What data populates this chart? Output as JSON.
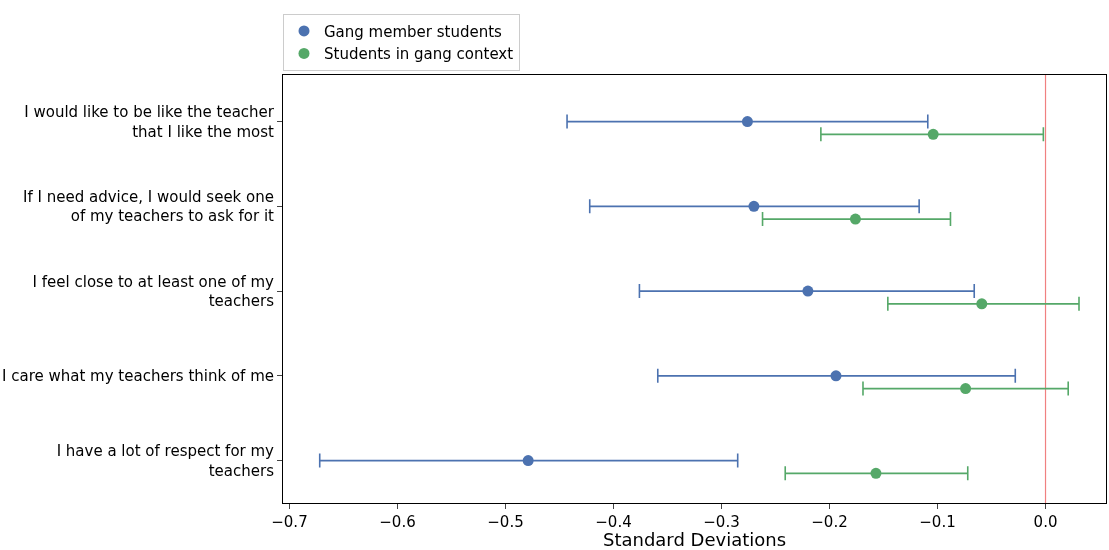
{
  "chart_data": {
    "type": "scatter",
    "orientation": "horizontal",
    "xlabel": "Standard Deviations",
    "categories": [
      "I would like to be like the teacher\n that I like the most",
      "If I need advice, I would seek one\n of my teachers to ask for it",
      "I feel close to at least one of my\n teachers",
      "I care what my teachers think of me",
      "I have a lot of respect for my\n teachers"
    ],
    "series": [
      {
        "name": "Gang member students",
        "color": "#4c72b0",
        "values": [
          -0.276,
          -0.27,
          -0.22,
          -0.194,
          -0.479
        ],
        "errors": [
          [
            -0.443,
            -0.109
          ],
          [
            -0.422,
            -0.117
          ],
          [
            -0.376,
            -0.066
          ],
          [
            -0.359,
            -0.028
          ],
          [
            -0.672,
            -0.285
          ]
        ]
      },
      {
        "name": "Students in gang context",
        "color": "#55a868",
        "values": [
          -0.104,
          -0.176,
          -0.059,
          -0.074,
          -0.157
        ],
        "errors": [
          [
            -0.208,
            -0.002
          ],
          [
            -0.262,
            -0.088
          ],
          [
            -0.146,
            0.031
          ],
          [
            -0.169,
            0.021
          ],
          [
            -0.241,
            -0.072
          ]
        ]
      }
    ],
    "xlim": [
      -0.706,
      0.056
    ],
    "xticks": [
      {
        "value": -0.7,
        "label": "−0.7"
      },
      {
        "value": -0.6,
        "label": "−0.6"
      },
      {
        "value": -0.5,
        "label": "−0.5"
      },
      {
        "value": -0.4,
        "label": "−0.4"
      },
      {
        "value": -0.3,
        "label": "−0.3"
      },
      {
        "value": -0.2,
        "label": "−0.2"
      },
      {
        "value": -0.1,
        "label": "−0.1"
      },
      {
        "value": 0,
        "label": "0.0"
      }
    ],
    "ref_lines": [
      {
        "axis": "x",
        "value": 0,
        "color": "#f08080"
      }
    ],
    "grid": false,
    "legend": "top left",
    "marker": "circle"
  }
}
